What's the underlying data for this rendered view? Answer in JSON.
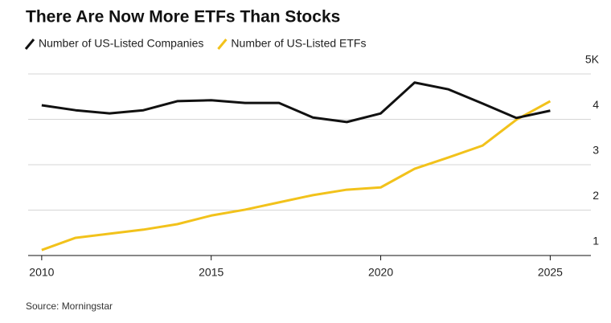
{
  "chart_data": {
    "type": "line",
    "title": "There Are Now More ETFs Than Stocks",
    "source": "Source: Morningstar",
    "x": [
      2010,
      2011,
      2012,
      2013,
      2014,
      2015,
      2016,
      2017,
      2018,
      2019,
      2020,
      2021,
      2022,
      2023,
      2024,
      2025
    ],
    "series": [
      {
        "name": "Number of US-Listed Companies",
        "color": "#111111",
        "values": [
          4.31,
          4.2,
          4.13,
          4.2,
          4.4,
          4.42,
          4.36,
          4.36,
          4.04,
          3.94,
          4.13,
          4.81,
          4.66,
          4.35,
          4.03,
          4.19
        ]
      },
      {
        "name": "Number of US-Listed ETFs",
        "color": "#f2c21b",
        "values": [
          1.12,
          1.39,
          1.48,
          1.57,
          1.69,
          1.88,
          2.01,
          2.17,
          2.33,
          2.45,
          2.5,
          2.91,
          3.16,
          3.42,
          3.99,
          4.4
        ]
      }
    ],
    "xlim": [
      2009.6,
      2026.2
    ],
    "xticks": [
      2010,
      2015,
      2020,
      2025
    ],
    "ylim": [
      1,
      5
    ],
    "yticks": [
      1,
      2,
      3,
      4,
      {
        "value": 5,
        "label": "5K"
      }
    ],
    "grid": true
  }
}
